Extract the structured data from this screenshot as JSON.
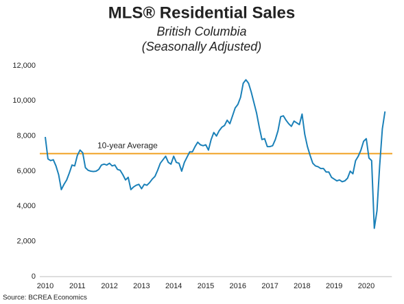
{
  "chart_data": {
    "type": "line",
    "title": "MLS® Residential Sales",
    "subtitle": [
      "British Columbia",
      "(Seasonally Adjusted)"
    ],
    "source": "Source: BCREA Economics",
    "categories": [
      "2010",
      null,
      null,
      null,
      null,
      null,
      null,
      null,
      null,
      null,
      null,
      null,
      "2011",
      null,
      null,
      null,
      null,
      null,
      null,
      null,
      null,
      null,
      null,
      null,
      "2012",
      null,
      null,
      null,
      null,
      null,
      null,
      null,
      null,
      null,
      null,
      null,
      "2013",
      null,
      null,
      null,
      null,
      null,
      null,
      null,
      null,
      null,
      null,
      null,
      "2014",
      null,
      null,
      null,
      null,
      null,
      null,
      null,
      null,
      null,
      null,
      null,
      "2015",
      null,
      null,
      null,
      null,
      null,
      null,
      null,
      null,
      null,
      null,
      null,
      "2016",
      null,
      null,
      null,
      null,
      null,
      null,
      null,
      null,
      null,
      null,
      null,
      "2017",
      null,
      null,
      null,
      null,
      null,
      null,
      null,
      null,
      null,
      null,
      null,
      "2018",
      null,
      null,
      null,
      null,
      null,
      null,
      null,
      null,
      null,
      null,
      null,
      "2019",
      null,
      null,
      null,
      null,
      null,
      null,
      null,
      null,
      null,
      null,
      null,
      "2020",
      null,
      null,
      null,
      null,
      null,
      null,
      null
    ],
    "series": [
      {
        "color": "#1a80b8",
        "values": [
          7950,
          6700,
          6600,
          6650,
          6300,
          5800,
          4950,
          5250,
          5500,
          5900,
          6350,
          6300,
          6900,
          7200,
          7050,
          6200,
          6050,
          6000,
          5980,
          6000,
          6100,
          6350,
          6400,
          6350,
          6450,
          6300,
          6350,
          6100,
          6050,
          5800,
          5500,
          5650,
          4950,
          5100,
          5200,
          5250,
          5000,
          5250,
          5200,
          5350,
          5550,
          5700,
          6050,
          6450,
          6650,
          6850,
          6500,
          6400,
          6850,
          6500,
          6450,
          6000,
          6500,
          6800,
          7100,
          7100,
          7400,
          7650,
          7500,
          7450,
          7500,
          7200,
          7800,
          8200,
          8000,
          8300,
          8500,
          8600,
          8900,
          8700,
          9150,
          9600,
          9800,
          10200,
          11000,
          11200,
          11000,
          10500,
          9900,
          9300,
          8500,
          7800,
          7850,
          7400,
          7400,
          7450,
          7800,
          8300,
          9100,
          9150,
          8900,
          8700,
          8550,
          8850,
          8750,
          8650,
          9250,
          8100,
          7400,
          6900,
          6450,
          6300,
          6250,
          6150,
          6150,
          5950,
          5950,
          5650,
          5550,
          5450,
          5500,
          5400,
          5450,
          5600,
          6000,
          5850,
          6600,
          6850,
          7200,
          7700,
          7850,
          6750,
          6600,
          2750,
          3750,
          6300,
          8400,
          9400
        ]
      }
    ],
    "reference_line": {
      "value": 7000,
      "label": "10-year Average",
      "color": "#f0a020"
    },
    "ylim": [
      0,
      12000
    ],
    "yticks": [
      0,
      {
        "value": 2000,
        "label": "2,000"
      },
      {
        "value": 4000,
        "label": "4,000"
      },
      {
        "value": 6000,
        "label": "6,000"
      },
      {
        "value": 8000,
        "label": "8,000"
      },
      {
        "value": 10000,
        "label": "10,000"
      },
      {
        "value": 12000,
        "label": "12,000"
      }
    ],
    "grid": false
  }
}
